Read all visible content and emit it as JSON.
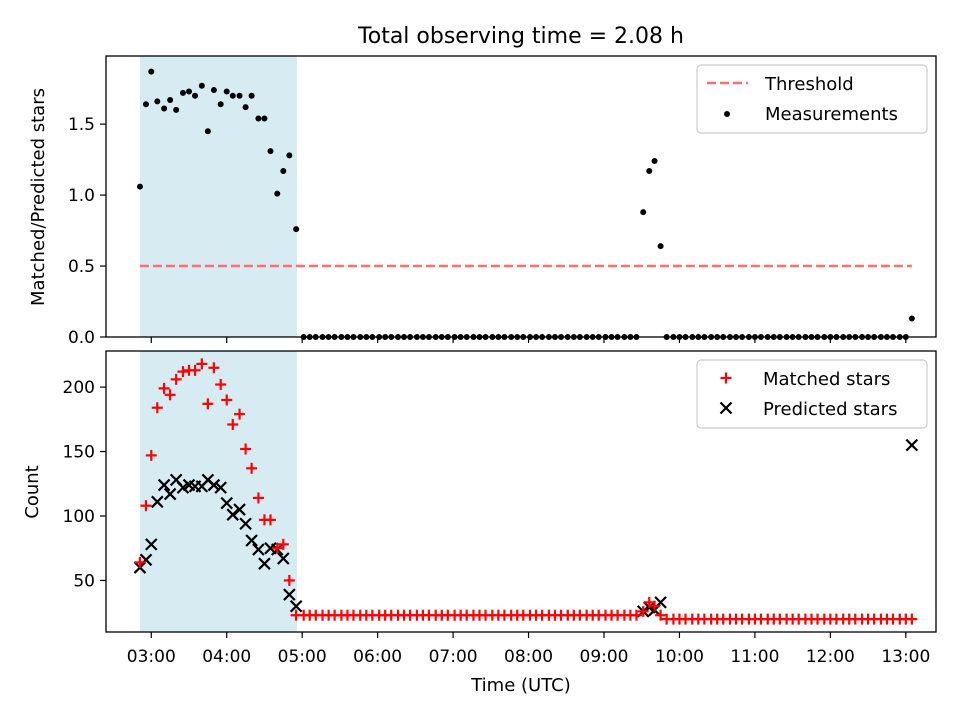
{
  "colors": {
    "shade": "#add8e6",
    "threshold": "#ff6f6f",
    "measurement": "#000000",
    "matched": "#ff0000",
    "predicted": "#000000"
  },
  "chart_data": [
    {
      "type": "scatter",
      "title": "Total observing time = 2.08 h",
      "xlabel": "",
      "ylabel": "Matched/Predicted stars",
      "xlim": [
        2.4,
        13.4
      ],
      "ylim": [
        0,
        1.98
      ],
      "y_ticks": [
        0.0,
        0.5,
        1.0,
        1.5
      ],
      "y_tick_labels": [
        "0.0",
        "0.5",
        "1.0",
        "1.5"
      ],
      "grid": false,
      "legend_position": "top-right",
      "shaded_region": [
        2.85,
        4.93
      ],
      "threshold": {
        "name": "Threshold",
        "y": 0.5,
        "x_range": [
          2.85,
          13.08
        ]
      },
      "series": [
        {
          "name": "Measurements",
          "x": [
            2.85,
            2.93,
            3.0,
            3.08,
            3.17,
            3.25,
            3.33,
            3.42,
            3.5,
            3.58,
            3.67,
            3.75,
            3.83,
            3.92,
            4.0,
            4.08,
            4.17,
            4.25,
            4.33,
            4.42,
            4.5,
            4.58,
            4.67,
            4.75,
            4.83,
            4.92,
            5.02,
            5.1,
            5.18,
            5.27,
            5.35,
            5.43,
            5.52,
            5.6,
            5.68,
            5.77,
            5.85,
            5.93,
            6.02,
            6.1,
            6.18,
            6.27,
            6.35,
            6.43,
            6.52,
            6.6,
            6.68,
            6.77,
            6.85,
            6.93,
            7.02,
            7.1,
            7.18,
            7.27,
            7.35,
            7.43,
            7.52,
            7.6,
            7.68,
            7.77,
            7.85,
            7.93,
            8.02,
            8.1,
            8.18,
            8.27,
            8.35,
            8.43,
            8.52,
            8.6,
            8.68,
            8.77,
            8.85,
            8.93,
            9.02,
            9.1,
            9.18,
            9.27,
            9.35,
            9.43,
            9.52,
            9.6,
            9.67,
            9.75,
            9.83,
            9.92,
            10.0,
            10.08,
            10.17,
            10.25,
            10.33,
            10.42,
            10.5,
            10.58,
            10.67,
            10.75,
            10.83,
            10.92,
            11.0,
            11.08,
            11.17,
            11.25,
            11.33,
            11.42,
            11.5,
            11.58,
            11.67,
            11.75,
            11.83,
            11.92,
            12.0,
            12.08,
            12.17,
            12.25,
            12.33,
            12.42,
            12.5,
            12.58,
            12.67,
            12.75,
            12.83,
            12.92,
            13.0,
            13.08
          ],
          "y": [
            1.06,
            1.64,
            1.87,
            1.66,
            1.61,
            1.67,
            1.6,
            1.72,
            1.73,
            1.7,
            1.77,
            1.45,
            1.74,
            1.64,
            1.73,
            1.7,
            1.7,
            1.62,
            1.7,
            1.54,
            1.54,
            1.31,
            1.01,
            1.17,
            1.28,
            0.76,
            0.0,
            0.0,
            0.0,
            0.0,
            0.0,
            0.0,
            0.0,
            0.0,
            0.0,
            0.0,
            0.0,
            0.0,
            0.0,
            0.0,
            0.0,
            0.0,
            0.0,
            0.0,
            0.0,
            0.0,
            0.0,
            0.0,
            0.0,
            0.0,
            0.0,
            0.0,
            0.0,
            0.0,
            0.0,
            0.0,
            0.0,
            0.0,
            0.0,
            0.0,
            0.0,
            0.0,
            0.0,
            0.0,
            0.0,
            0.0,
            0.0,
            0.0,
            0.0,
            0.0,
            0.0,
            0.0,
            0.0,
            0.0,
            0.0,
            0.0,
            0.0,
            0.0,
            0.0,
            0.0,
            0.88,
            1.17,
            1.24,
            0.64,
            0.0,
            0.0,
            0.0,
            0.0,
            0.0,
            0.0,
            0.0,
            0.0,
            0.0,
            0.0,
            0.0,
            0.0,
            0.0,
            0.0,
            0.0,
            0.0,
            0.0,
            0.0,
            0.0,
            0.0,
            0.0,
            0.0,
            0.0,
            0.0,
            0.0,
            0.0,
            0.0,
            0.0,
            0.0,
            0.0,
            0.0,
            0.0,
            0.0,
            0.0,
            0.0,
            0.0,
            0.0,
            0.0,
            0.0,
            0.13
          ]
        }
      ]
    },
    {
      "type": "scatter",
      "title": "",
      "xlabel": "Time (UTC)",
      "ylabel": "Count",
      "xlim": [
        2.4,
        13.4
      ],
      "ylim": [
        10,
        228
      ],
      "x_ticks": [
        3,
        4,
        5,
        6,
        7,
        8,
        9,
        10,
        11,
        12,
        13
      ],
      "x_tick_labels": [
        "03:00",
        "04:00",
        "05:00",
        "06:00",
        "07:00",
        "08:00",
        "09:00",
        "10:00",
        "11:00",
        "12:00",
        "13:00"
      ],
      "y_ticks": [
        50,
        100,
        150,
        200
      ],
      "y_tick_labels": [
        "50",
        "100",
        "150",
        "200"
      ],
      "grid": false,
      "legend_position": "top-right",
      "shaded_region": [
        2.85,
        4.93
      ],
      "series": [
        {
          "name": "Matched stars",
          "marker": "plus",
          "x": [
            2.85,
            2.93,
            3.0,
            3.08,
            3.17,
            3.25,
            3.33,
            3.42,
            3.5,
            3.58,
            3.67,
            3.75,
            3.83,
            3.92,
            4.0,
            4.08,
            4.17,
            4.25,
            4.33,
            4.42,
            4.5,
            4.58,
            4.67,
            4.75,
            4.83,
            4.92,
            5.02,
            5.1,
            5.18,
            5.27,
            5.35,
            5.43,
            5.52,
            5.6,
            5.68,
            5.77,
            5.85,
            5.93,
            6.02,
            6.1,
            6.18,
            6.27,
            6.35,
            6.43,
            6.52,
            6.6,
            6.68,
            6.77,
            6.85,
            6.93,
            7.02,
            7.1,
            7.18,
            7.27,
            7.35,
            7.43,
            7.52,
            7.6,
            7.68,
            7.77,
            7.85,
            7.93,
            8.02,
            8.1,
            8.18,
            8.27,
            8.35,
            8.43,
            8.52,
            8.6,
            8.68,
            8.77,
            8.85,
            8.93,
            9.02,
            9.1,
            9.18,
            9.27,
            9.35,
            9.43,
            9.52,
            9.6,
            9.67,
            9.75,
            9.83,
            9.92,
            10.0,
            10.08,
            10.17,
            10.25,
            10.33,
            10.42,
            10.5,
            10.58,
            10.67,
            10.75,
            10.83,
            10.92,
            11.0,
            11.08,
            11.17,
            11.25,
            11.33,
            11.42,
            11.5,
            11.58,
            11.67,
            11.75,
            11.83,
            11.92,
            12.0,
            12.08,
            12.17,
            12.25,
            12.33,
            12.42,
            12.5,
            12.58,
            12.67,
            12.75,
            12.83,
            12.92,
            13.0,
            13.08
          ],
          "y": [
            64,
            108,
            147,
            184,
            199,
            194,
            206,
            212,
            213,
            213,
            218,
            187,
            215,
            202,
            190,
            171,
            179,
            152,
            137,
            114,
            97,
            97,
            75,
            78,
            50,
            23,
            23,
            23,
            23,
            23,
            23,
            23,
            23,
            23,
            23,
            23,
            23,
            23,
            23,
            23,
            23,
            23,
            23,
            23,
            23,
            23,
            23,
            23,
            23,
            23,
            23,
            23,
            23,
            23,
            23,
            23,
            23,
            23,
            23,
            23,
            23,
            23,
            23,
            23,
            23,
            23,
            23,
            23,
            23,
            23,
            23,
            23,
            23,
            23,
            23,
            23,
            23,
            23,
            23,
            23,
            26,
            33,
            30,
            23,
            20,
            20,
            20,
            20,
            20,
            20,
            20,
            20,
            20,
            20,
            20,
            20,
            20,
            20,
            20,
            20,
            20,
            20,
            20,
            20,
            20,
            20,
            20,
            20,
            20,
            20,
            20,
            20,
            20,
            20,
            20,
            20,
            20,
            20,
            20,
            20,
            20,
            20,
            20,
            20
          ]
        },
        {
          "name": "Predicted stars",
          "marker": "cross",
          "x": [
            2.85,
            2.93,
            3.0,
            3.08,
            3.17,
            3.25,
            3.33,
            3.42,
            3.5,
            3.58,
            3.67,
            3.75,
            3.83,
            3.92,
            4.0,
            4.08,
            4.17,
            4.25,
            4.33,
            4.42,
            4.5,
            4.58,
            4.67,
            4.75,
            4.83,
            4.92,
            9.52,
            9.6,
            9.67,
            9.75,
            13.08
          ],
          "y": [
            60,
            66,
            78,
            111,
            124,
            117,
            128,
            122,
            124,
            123,
            123,
            128,
            124,
            122,
            110,
            101,
            105,
            94,
            81,
            74,
            63,
            75,
            74,
            67,
            39,
            30,
            26,
            29,
            27,
            33,
            155
          ]
        }
      ]
    }
  ]
}
